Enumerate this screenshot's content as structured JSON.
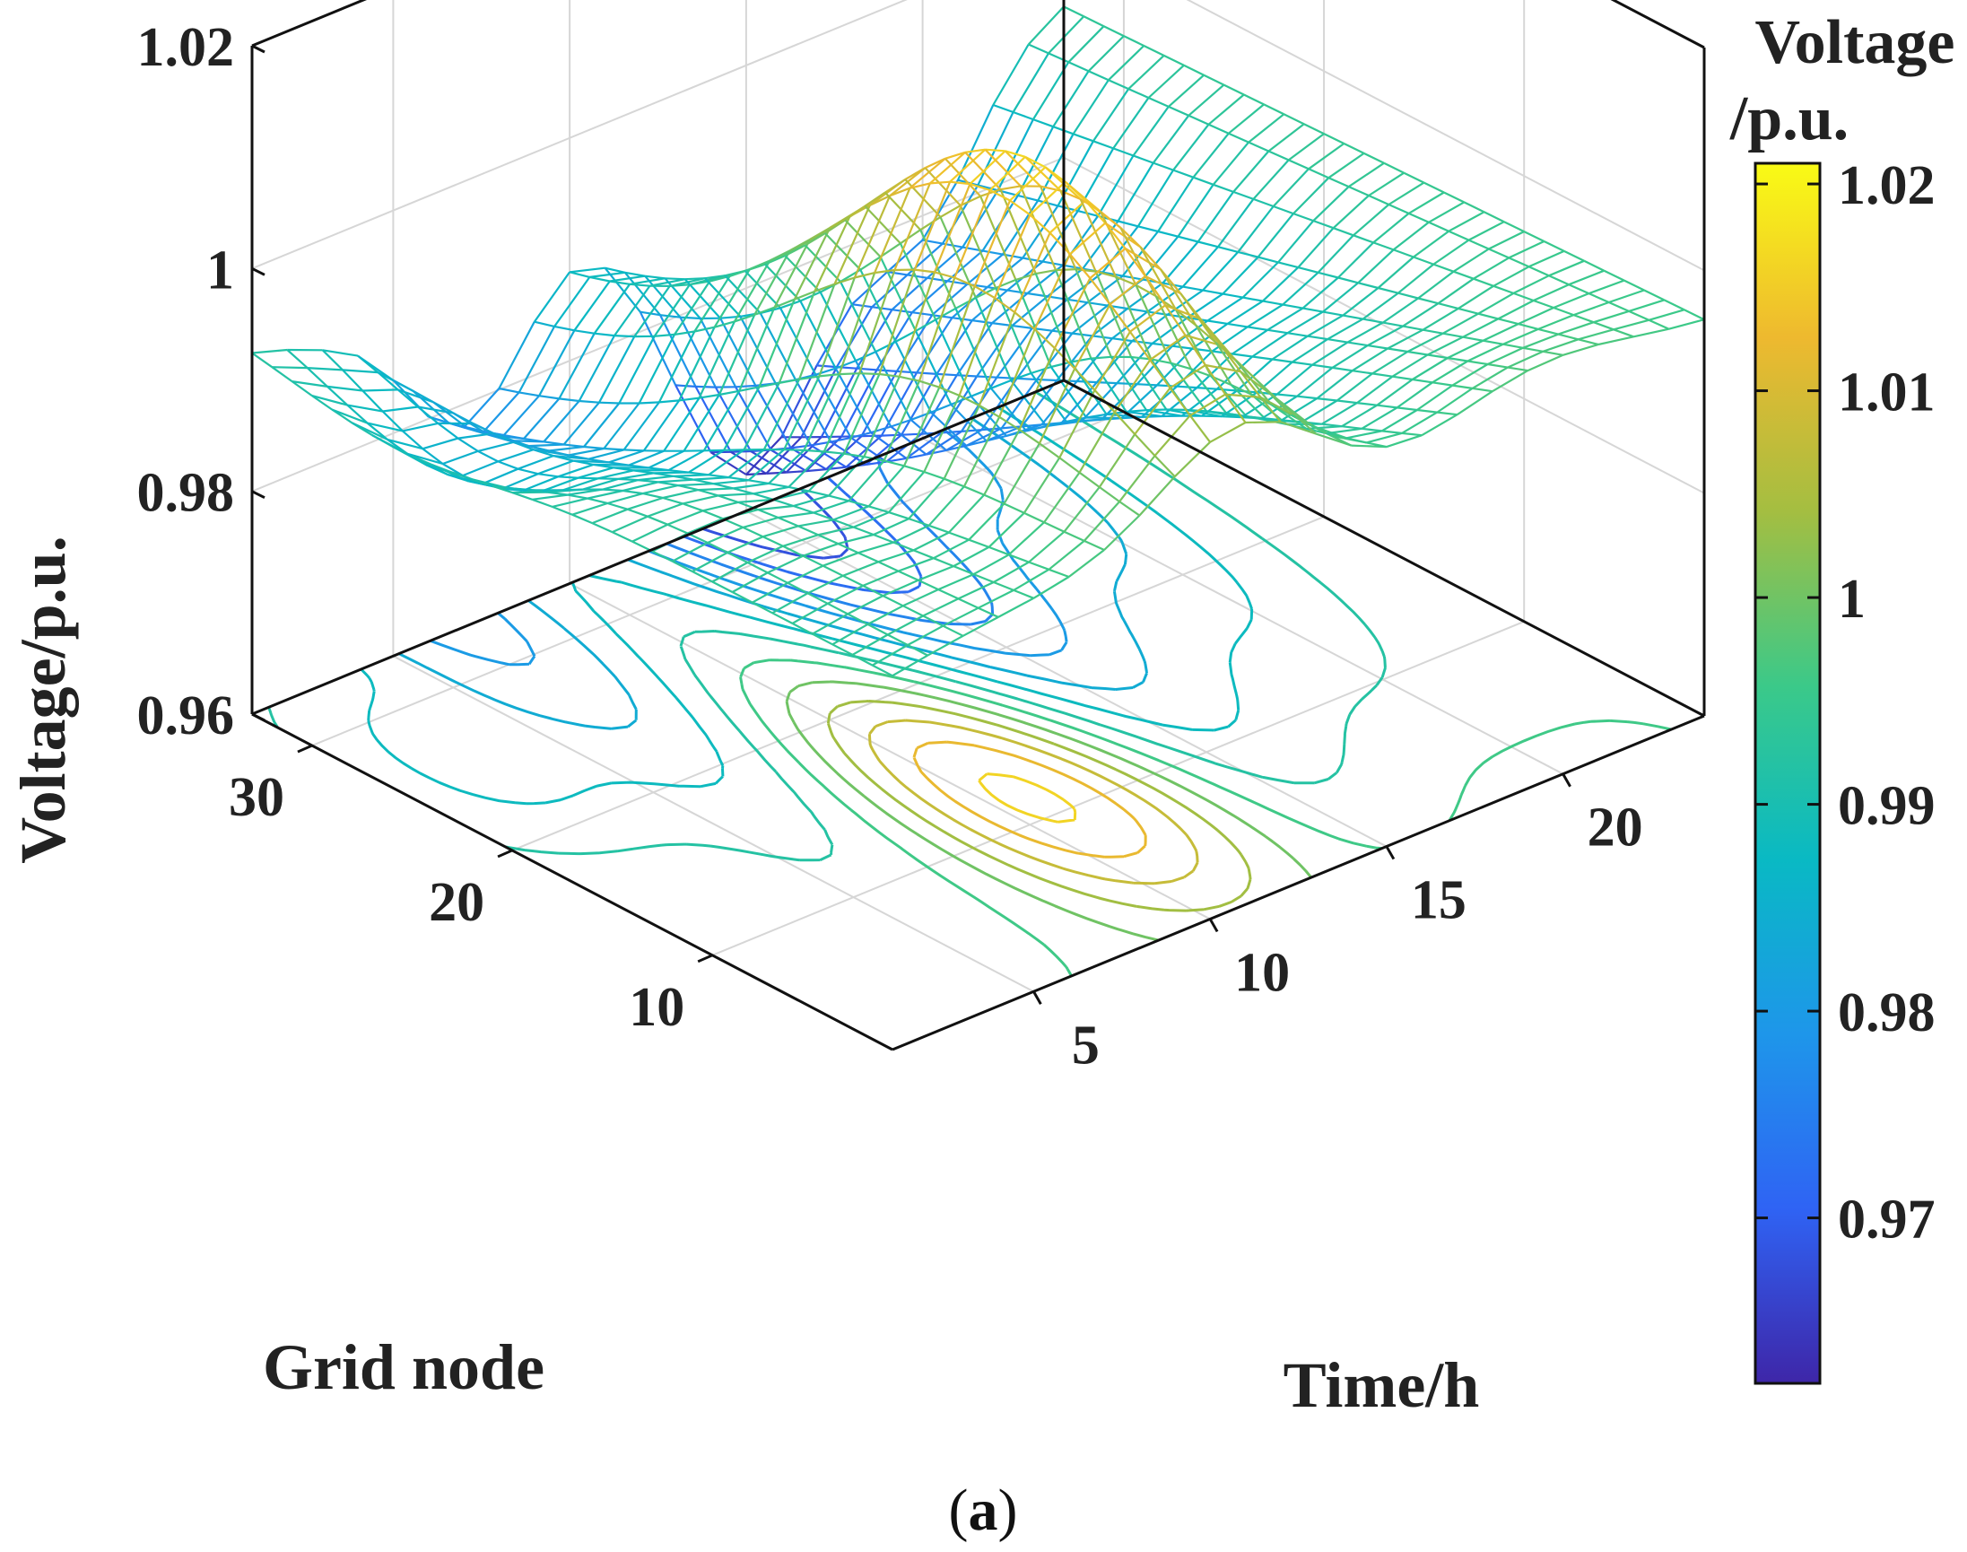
{
  "chart_data": {
    "type": "surface3d",
    "title": "",
    "caption": "(a)",
    "xlabel": "Time/h",
    "ylabel": "Grid node",
    "zlabel": "Voltage/p.u.",
    "x_range": [
      1,
      24
    ],
    "y_range": [
      1,
      33
    ],
    "zlim": [
      0.96,
      1.02
    ],
    "x_ticks": [
      "5",
      "10",
      "15",
      "20"
    ],
    "x_tick_values": [
      5,
      10,
      15,
      20
    ],
    "y_ticks": [
      "10",
      "20",
      "30"
    ],
    "y_tick_values": [
      10,
      20,
      30
    ],
    "z_ticks": [
      "0.96",
      "0.98",
      "1",
      "1.02"
    ],
    "z_tick_values": [
      0.96,
      0.98,
      1.0,
      1.02
    ],
    "colorbar": {
      "title_line1": "Voltage",
      "title_line2": "/p.u.",
      "range": [
        0.962,
        1.021
      ],
      "ticks": [
        "0.97",
        "0.98",
        "0.99",
        "1",
        "1.01",
        "1.02"
      ],
      "tick_values": [
        0.97,
        0.98,
        0.99,
        1.0,
        1.01,
        1.02
      ],
      "colormap": [
        "#3e26a8",
        "#2f63f4",
        "#1e96ea",
        "#09b9c4",
        "#3bc989",
        "#a4be41",
        "#eeb92f",
        "#f9fb15"
      ]
    },
    "surface_description_points": [
      {
        "time_h": 1,
        "node": 1,
        "voltage": 0.993
      },
      {
        "time_h": 9,
        "node": 10,
        "voltage": 1.017
      },
      {
        "time_h": 12,
        "node": 12,
        "voltage": 1.02
      },
      {
        "time_h": 15,
        "node": 30,
        "voltage": 0.965
      },
      {
        "time_h": 24,
        "node": 33,
        "voltage": 0.993
      }
    ],
    "contour_levels": [
      0.968,
      0.972,
      0.976,
      0.98,
      0.984,
      0.988,
      0.992,
      0.996,
      1.0,
      1.004,
      1.008,
      1.012,
      1.016
    ]
  }
}
